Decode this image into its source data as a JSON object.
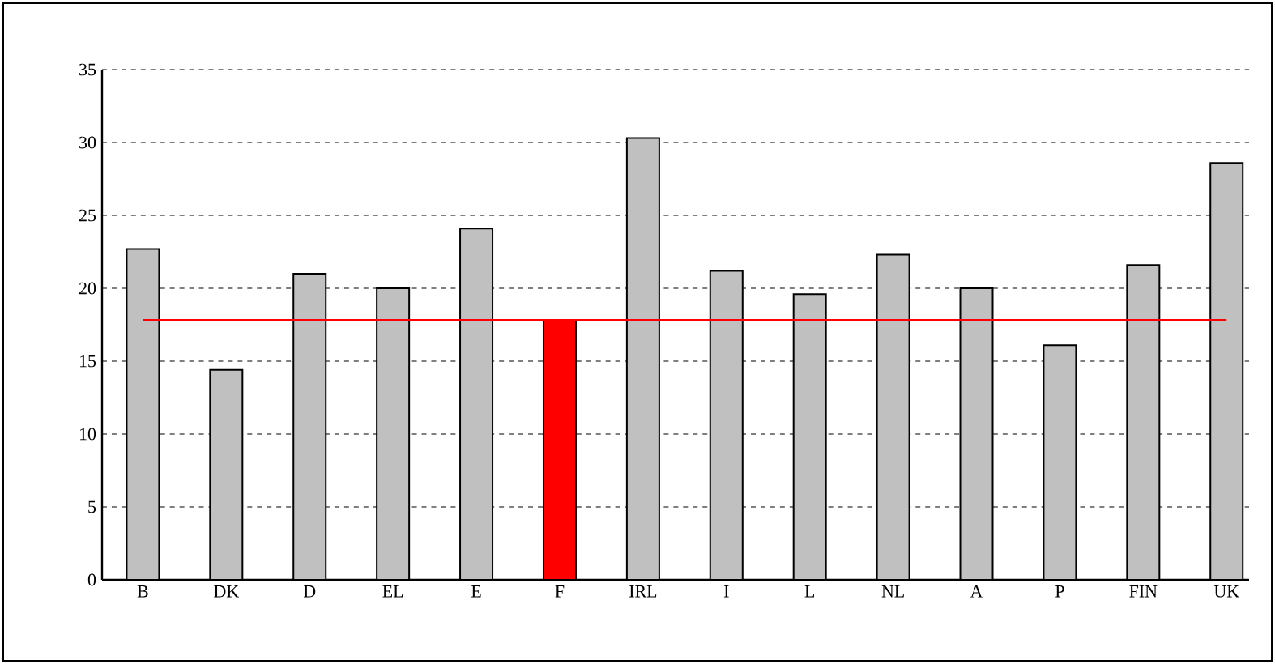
{
  "chart_data": {
    "type": "bar",
    "categories": [
      "B",
      "DK",
      "D",
      "EL",
      "E",
      "F",
      "IRL",
      "I",
      "L",
      "NL",
      "A",
      "P",
      "FIN",
      "UK"
    ],
    "values": [
      22.7,
      14.4,
      21.0,
      20.0,
      24.1,
      17.8,
      30.3,
      21.2,
      19.6,
      22.3,
      20.0,
      16.1,
      21.6,
      28.6
    ],
    "colors": [
      "#c0c0c0",
      "#c0c0c0",
      "#c0c0c0",
      "#c0c0c0",
      "#c0c0c0",
      "#ff0000",
      "#c0c0c0",
      "#c0c0c0",
      "#c0c0c0",
      "#c0c0c0",
      "#c0c0c0",
      "#c0c0c0",
      "#c0c0c0",
      "#c0c0c0"
    ],
    "ylim": [
      0,
      35
    ],
    "yticks": [
      0,
      5,
      10,
      15,
      20,
      25,
      30,
      35
    ],
    "grid": "y",
    "ref_lines": [
      {
        "axis": "y",
        "value": 17.8,
        "color": "#ff0000"
      }
    ]
  }
}
